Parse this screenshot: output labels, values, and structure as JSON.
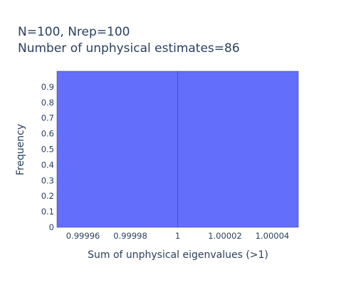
{
  "chart_data": {
    "type": "bar",
    "title_lines": [
      "N=100, Nrep=100",
      "Number of unphysical estimates=86"
    ],
    "xlabel": "Sum of unphysical eigenvalues (>1)",
    "ylabel": "Frequency",
    "x_ticks": [
      {
        "value": 0.99996,
        "label": "0.99996"
      },
      {
        "value": 0.99998,
        "label": "0.99998"
      },
      {
        "value": 1.0,
        "label": "1"
      },
      {
        "value": 1.00002,
        "label": "1.00002"
      },
      {
        "value": 1.00004,
        "label": "1.00004"
      }
    ],
    "y_ticks": [
      {
        "value": 0,
        "label": "0"
      },
      {
        "value": 0.1,
        "label": "0.1"
      },
      {
        "value": 0.2,
        "label": "0.2"
      },
      {
        "value": 0.3,
        "label": "0.3"
      },
      {
        "value": 0.4,
        "label": "0.4"
      },
      {
        "value": 0.5,
        "label": "0.5"
      },
      {
        "value": 0.6,
        "label": "0.6"
      },
      {
        "value": 0.7,
        "label": "0.7"
      },
      {
        "value": 0.8,
        "label": "0.8"
      },
      {
        "value": 0.9,
        "label": "0.9"
      }
    ],
    "xlim": [
      0.999949,
      1.000051
    ],
    "ylim": [
      0,
      1.0
    ],
    "bars": [
      {
        "x0": 0.999949,
        "x1": 1.0,
        "value": 1.0
      },
      {
        "x0": 1.0,
        "x1": 1.000051,
        "value": 1.0
      }
    ],
    "bar_color": "#636efa",
    "bar_edge_color": "#3f4a8f",
    "grid": false
  }
}
